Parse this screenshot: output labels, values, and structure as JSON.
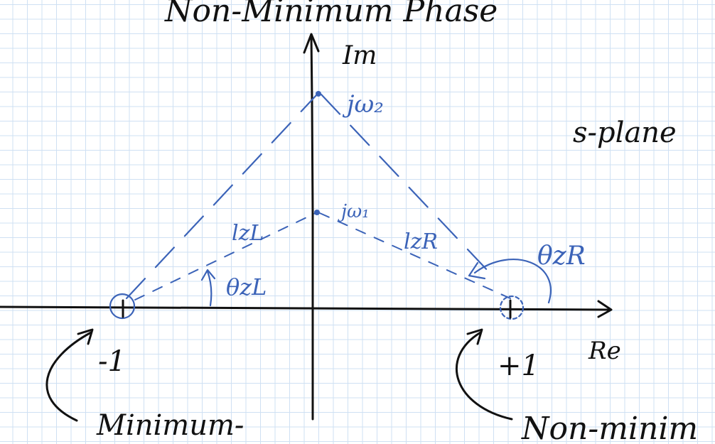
{
  "title": "Non-Minimum Phase",
  "labels": {
    "imag_axis": "Im",
    "real_axis": "Re",
    "plane": "s-plane",
    "jw2": "jω₂",
    "jw1": "jω₁",
    "lzl": "lzL",
    "lzr": "lzR",
    "theta_zl": "θzL",
    "theta_zr": "θzR",
    "minus_one": "-1",
    "plus_one": "+1",
    "minimum_caption": "Minimum-",
    "nonminimum_caption": "Non-minim"
  },
  "colors": {
    "ink": "#111111",
    "annotation": "#3b63b8",
    "grid": "#cfe0f3"
  }
}
